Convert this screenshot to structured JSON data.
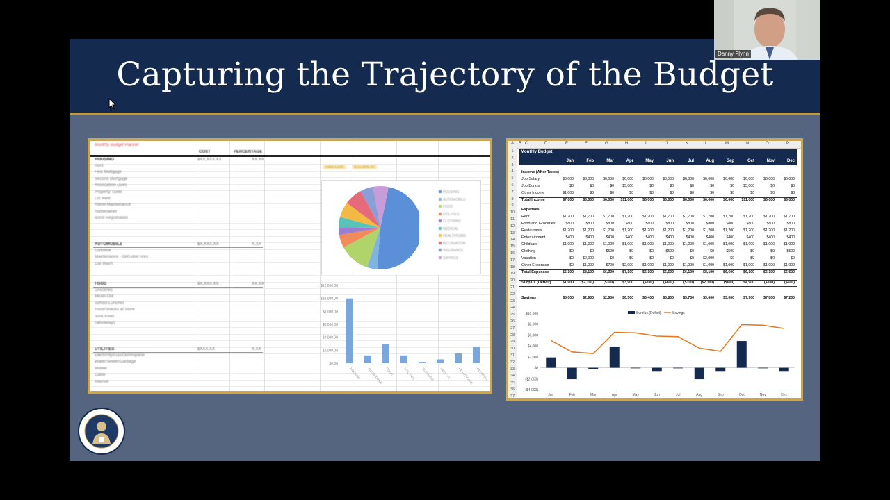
{
  "slide": {
    "title": "Capturing the Trajectory of the Budget"
  },
  "webcam": {
    "participant_name": "Danny Flynn"
  },
  "left_sheet": {
    "title": "Monthly Budget Planner",
    "headers": [
      "COST",
      "PERCENTAGE"
    ],
    "total_cost_label": "Total Cost:",
    "total_cost_value": "$10,895.00",
    "sections": [
      {
        "name": "HOUSING",
        "cost": "$XX,XXX.XX",
        "pct": "XX.XX",
        "rows": [
          "Rent",
          "First Mortgage",
          "Second Mortgage",
          "Association Dues",
          "Property Taxes",
          "Lot Rent",
          "Home Maintenance",
          "Homeowner",
          "Bond Registration"
        ]
      },
      {
        "name": "AUTOMOBILE",
        "cost": "$X,XXX.XX",
        "pct": "X.XX",
        "rows": [
          "Gasoline",
          "Maintenance - Oil/Lube/Tires",
          "Car Wash"
        ]
      },
      {
        "name": "FOOD",
        "cost": "$X,XXX.XX",
        "pct": "XX.XX",
        "rows": [
          "Groceries",
          "Meals Out",
          "School Lunches",
          "Food/Snacks at Store",
          "Junk Food",
          "Takeaways"
        ]
      },
      {
        "name": "UTILITIES",
        "cost": "$XXX.XX",
        "pct": "X.XX",
        "rows": [
          "Electricity/Gas/Oil/Propane",
          "Water/Sewer/Garbage",
          "Mobile",
          "Cable",
          "Internet"
        ]
      }
    ],
    "pie_legend": [
      "HOUSING",
      "AUTOMOBILE",
      "FOOD",
      "UTILITIES",
      "CLOTHING",
      "MEDICAL",
      "HEALTHCARE",
      "RECREATION",
      "INSURANCE",
      "SAVINGS"
    ],
    "bar_axis": [
      "$12,000.00",
      "$10,000.00",
      "$8,000.00",
      "$6,000.00",
      "$4,000.00",
      "$2,000.00",
      "$0.00"
    ],
    "bar_values": [
      10000,
      1200,
      3000,
      1200,
      200,
      600,
      1500,
      2500
    ],
    "bar_categories": [
      "HOUSING",
      "AUTOMOBILE",
      "FOOD",
      "UTILITIES",
      "CLOTHING",
      "MEDICAL",
      "HEALTHCARE",
      "RECREATION"
    ]
  },
  "right_sheet": {
    "columns": [
      "A",
      "B",
      "C",
      "D",
      "E",
      "F",
      "G",
      "H",
      "I",
      "J",
      "K",
      "L",
      "M",
      "N",
      "O",
      "P"
    ],
    "title": "Monthly Budget",
    "months": [
      "Jan",
      "Feb",
      "Mar",
      "Apr",
      "May",
      "Jun",
      "Jul",
      "Aug",
      "Sep",
      "Oct",
      "Nov",
      "Dec"
    ],
    "rows": [
      {
        "n": "4",
        "label": "Income (After Taxes)",
        "bold": true,
        "values": []
      },
      {
        "n": "5",
        "label": "Job Salary",
        "values": [
          "$6,000",
          "$6,000",
          "$6,000",
          "$6,000",
          "$6,000",
          "$6,000",
          "$6,000",
          "$6,000",
          "$6,000",
          "$6,000",
          "$6,000",
          "$6,000"
        ]
      },
      {
        "n": "6",
        "label": "Job Bonus",
        "values": [
          "$0",
          "$0",
          "$0",
          "$5,000",
          "$0",
          "$0",
          "$0",
          "$0",
          "$0",
          "$5,000",
          "$0",
          "$0"
        ]
      },
      {
        "n": "7",
        "label": "Other Income",
        "values": [
          "$1,000",
          "$0",
          "$0",
          "$0",
          "$0",
          "$0",
          "$0",
          "$0",
          "$0",
          "$0",
          "$0",
          "$0"
        ]
      },
      {
        "n": "8",
        "label": "Total Income",
        "bold": true,
        "values": [
          "$7,000",
          "$6,000",
          "$6,000",
          "$11,000",
          "$6,000",
          "$6,000",
          "$6,000",
          "$6,000",
          "$6,000",
          "$11,000",
          "$6,000",
          "$6,000"
        ]
      },
      {
        "n": "10",
        "label": "Expenses",
        "bold": true,
        "values": []
      },
      {
        "n": "11",
        "label": "Rent",
        "values": [
          "$1,700",
          "$1,700",
          "$1,700",
          "$1,700",
          "$1,700",
          "$1,700",
          "$1,700",
          "$1,700",
          "$1,700",
          "$1,700",
          "$1,700",
          "$1,700"
        ]
      },
      {
        "n": "12",
        "label": "Food and Groceries",
        "values": [
          "$800",
          "$800",
          "$800",
          "$800",
          "$800",
          "$800",
          "$800",
          "$800",
          "$800",
          "$800",
          "$800",
          "$800"
        ]
      },
      {
        "n": "13",
        "label": "Restaurants",
        "values": [
          "$1,200",
          "$1,200",
          "$1,200",
          "$1,200",
          "$1,200",
          "$1,200",
          "$1,200",
          "$1,200",
          "$1,200",
          "$1,200",
          "$1,200",
          "$1,200"
        ]
      },
      {
        "n": "14",
        "label": "Entertainment",
        "values": [
          "$400",
          "$400",
          "$400",
          "$400",
          "$400",
          "$400",
          "$400",
          "$400",
          "$400",
          "$400",
          "$400",
          "$400"
        ]
      },
      {
        "n": "15",
        "label": "Childcare",
        "values": [
          "$1,000",
          "$1,000",
          "$1,000",
          "$1,000",
          "$1,000",
          "$1,000",
          "$1,000",
          "$1,000",
          "$1,000",
          "$1,000",
          "$1,000",
          "$1,000"
        ]
      },
      {
        "n": "16",
        "label": "Clothing",
        "values": [
          "$0",
          "$0",
          "$500",
          "$0",
          "$0",
          "$500",
          "$0",
          "$0",
          "$500",
          "$0",
          "$0",
          "$500"
        ]
      },
      {
        "n": "17",
        "label": "Vacation",
        "values": [
          "$0",
          "$2,000",
          "$0",
          "$0",
          "$0",
          "$0",
          "$0",
          "$2,000",
          "$0",
          "$0",
          "$0",
          "$0"
        ]
      },
      {
        "n": "18",
        "label": "Other Expenses",
        "values": [
          "$0",
          "$1,000",
          "$700",
          "$2,000",
          "$1,000",
          "$1,000",
          "$1,000",
          "$1,000",
          "$1,000",
          "$1,000",
          "$1,000",
          "$1,000"
        ]
      },
      {
        "n": "19",
        "label": "Total Expenses",
        "bold": true,
        "values": [
          "$5,100",
          "$8,100",
          "$6,300",
          "$7,100",
          "$6,100",
          "$6,600",
          "$6,100",
          "$8,100",
          "$6,600",
          "$6,100",
          "$6,100",
          "$6,600"
        ]
      },
      {
        "n": "21",
        "label": "Surplus (Deficit)",
        "bold": true,
        "values": [
          "$1,900",
          "($2,100)",
          "($300)",
          "$3,900",
          "($100)",
          "($600)",
          "($100)",
          "($2,100)",
          "($600)",
          "$4,900",
          "($100)",
          "($600)"
        ]
      },
      {
        "n": "23",
        "label": "Savings",
        "bold": true,
        "values": [
          "$5,000",
          "$2,900",
          "$2,600",
          "$6,500",
          "$6,400",
          "$5,800",
          "$5,700",
          "$3,600",
          "$3,000",
          "$7,900",
          "$7,800",
          "$7,200"
        ]
      }
    ],
    "chart_axis": [
      "$10,000",
      "$8,000",
      "$6,000",
      "$4,000",
      "$2,000",
      "$0",
      "($2,000)",
      "($4,000)"
    ],
    "legend": [
      "Surplus (Deficit)",
      "Savings"
    ]
  },
  "chart_data": [
    {
      "type": "bar",
      "categories": [
        "Jan",
        "Feb",
        "Mar",
        "Apr",
        "May",
        "Jun",
        "Jul",
        "Aug",
        "Sep",
        "Oct",
        "Nov",
        "Dec"
      ],
      "series": [
        {
          "name": "Surplus (Deficit)",
          "type": "bar",
          "values": [
            1900,
            -2100,
            -300,
            3900,
            -100,
            -600,
            -100,
            -2100,
            -600,
            4900,
            -100,
            -600
          ]
        },
        {
          "name": "Savings",
          "type": "line",
          "values": [
            5000,
            2900,
            2600,
            6500,
            6400,
            5800,
            5700,
            3600,
            3000,
            7900,
            7800,
            7200
          ]
        }
      ],
      "ylim": [
        -4000,
        10000
      ],
      "legend": "top-center",
      "colors": {
        "bar": "#142a4f",
        "line": "#e07b24"
      }
    },
    {
      "type": "pie",
      "categories": [
        "HOUSING",
        "AUTOMOBILE",
        "FOOD",
        "UTILITIES",
        "CLOTHING",
        "MEDICAL",
        "HEALTHCARE",
        "RECREATION",
        "INSURANCE",
        "SAVINGS"
      ],
      "values": [
        48,
        4,
        12,
        5,
        3,
        4,
        6,
        7,
        5,
        6
      ]
    }
  ],
  "colors": {
    "header": "#142a4f",
    "slide_bg": "#56657f",
    "gold": "#b99a4e"
  }
}
